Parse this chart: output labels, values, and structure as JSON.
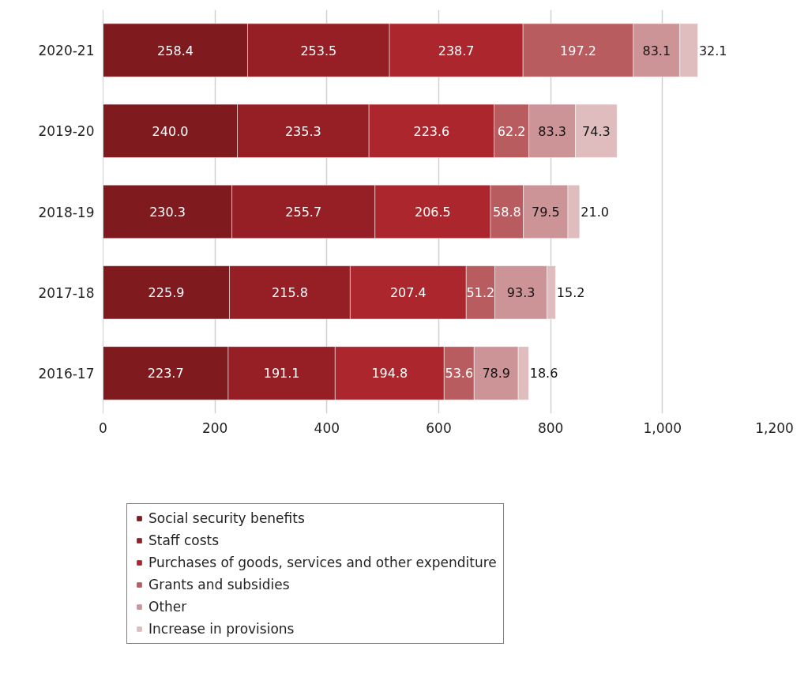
{
  "chart_data": {
    "type": "bar",
    "orientation": "horizontal",
    "stacked": true,
    "categories": [
      "2020-21",
      "2019-20",
      "2018-19",
      "2017-18",
      "2016-17"
    ],
    "series": [
      {
        "name": "Social security benefits",
        "color": "#7f1a1f",
        "values": [
          258.4,
          240.0,
          230.3,
          225.9,
          223.7
        ],
        "value_labels": [
          "258.4",
          "240.0",
          "230.3",
          "225.9",
          "223.7"
        ]
      },
      {
        "name": "Staff costs",
        "color": "#961e25",
        "values": [
          253.5,
          235.3,
          255.7,
          215.8,
          191.1
        ],
        "value_labels": [
          "253.5",
          "235.3",
          "255.7",
          "215.8",
          "191.1"
        ]
      },
      {
        "name": "Purchases of goods, services and other expenditure",
        "color": "#ab272d",
        "values": [
          238.7,
          223.6,
          206.5,
          207.4,
          194.8
        ],
        "value_labels": [
          "238.7",
          "223.6",
          "206.5",
          "207.4",
          "194.8"
        ]
      },
      {
        "name": "Grants and subsidies",
        "color": "#b95c60",
        "values": [
          197.2,
          62.2,
          58.8,
          51.2,
          53.6
        ],
        "value_labels": [
          "197.2",
          "62.2",
          "58.8",
          "51.2",
          "53.6"
        ]
      },
      {
        "name": "Other",
        "color": "#cc9497",
        "values": [
          83.1,
          83.3,
          79.5,
          93.3,
          78.9
        ],
        "value_labels": [
          "83.1",
          "83.3",
          "79.5",
          "93.3",
          "78.9"
        ]
      },
      {
        "name": "Increase in provisions",
        "color": "#dfbcbe",
        "values": [
          32.1,
          74.3,
          21.0,
          15.2,
          18.6
        ],
        "value_labels": [
          "32.1",
          "74.3",
          "21.0",
          "15.2",
          "18.6"
        ]
      }
    ],
    "xlim": [
      0,
      1200
    ],
    "xticks": [
      0,
      200,
      400,
      600,
      800,
      {
        "value": 1000,
        "label": "1,000"
      },
      {
        "value": 1200,
        "label": "1,200"
      }
    ],
    "grid": "x",
    "legend": "bottom",
    "data_labels": true
  }
}
